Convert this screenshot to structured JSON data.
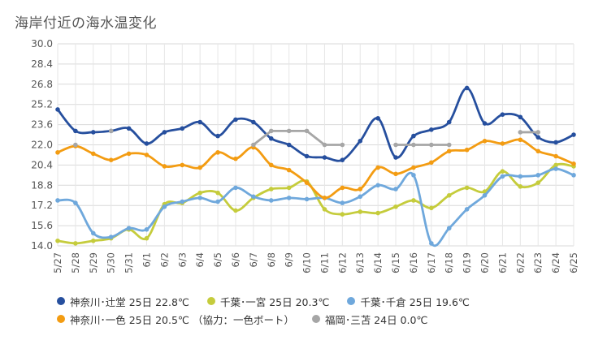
{
  "chart_data": {
    "type": "line",
    "title": "海岸付近の海水温変化",
    "xlabel": "",
    "ylabel": "",
    "ylim": [
      14.0,
      30.0
    ],
    "yticks": [
      14.0,
      15.6,
      17.2,
      18.8,
      20.4,
      22.0,
      23.6,
      25.2,
      26.8,
      28.4,
      30.0
    ],
    "grid": true,
    "legend_position": "bottom",
    "categories": [
      "5/27",
      "5/28",
      "5/29",
      "5/30",
      "5/31",
      "6/1",
      "6/2",
      "6/3",
      "6/4",
      "6/5",
      "6/6",
      "6/7",
      "6/8",
      "6/9",
      "6/10",
      "6/11",
      "6/12",
      "6/13",
      "6/14",
      "6/15",
      "6/16",
      "6/17",
      "6/18",
      "6/19",
      "6/20",
      "6/21",
      "6/22",
      "6/23",
      "6/24",
      "6/25"
    ],
    "series": [
      {
        "name": "神奈川･辻堂 25日 22.8℃",
        "color": "#264f9e",
        "smooth": true,
        "values": [
          24.8,
          23.1,
          23.0,
          23.1,
          23.3,
          22.1,
          23.0,
          23.3,
          23.8,
          22.7,
          24.0,
          23.8,
          22.5,
          22.0,
          21.1,
          21.0,
          20.8,
          22.3,
          24.1,
          21.0,
          22.7,
          23.2,
          23.8,
          26.5,
          23.7,
          24.4,
          24.2,
          22.6,
          22.2,
          22.8
        ]
      },
      {
        "name": "千葉･一宮 25日 20.3℃",
        "color": "#c5cc3c",
        "smooth": true,
        "values": [
          14.4,
          14.2,
          14.4,
          14.6,
          15.3,
          14.6,
          17.3,
          17.4,
          18.2,
          18.2,
          16.8,
          17.8,
          18.5,
          18.6,
          19.1,
          16.9,
          16.5,
          16.7,
          16.6,
          17.1,
          17.6,
          17.0,
          18.0,
          18.6,
          18.3,
          19.9,
          18.7,
          19.0,
          20.4,
          20.3
        ]
      },
      {
        "name": "千葉･千倉 25日 19.6℃",
        "color": "#6fa8dc",
        "smooth": true,
        "values": [
          17.6,
          17.4,
          15.0,
          14.7,
          15.4,
          15.3,
          17.1,
          17.5,
          17.8,
          17.5,
          18.6,
          17.9,
          17.6,
          17.8,
          17.7,
          17.8,
          17.4,
          17.9,
          18.8,
          18.5,
          19.6,
          14.2,
          15.4,
          16.9,
          18.0,
          19.5,
          19.5,
          19.6,
          20.1,
          19.6
        ]
      },
      {
        "name": "神奈川･一色 25日 20.5℃ （協力：一色ボート）",
        "color": "#f39c12",
        "smooth": true,
        "values": [
          21.4,
          21.9,
          21.3,
          20.8,
          21.3,
          21.2,
          20.3,
          20.4,
          20.2,
          21.4,
          20.9,
          21.8,
          20.4,
          20.0,
          19.0,
          17.8,
          18.6,
          18.5,
          20.2,
          19.7,
          20.2,
          20.6,
          21.5,
          21.6,
          22.3,
          22.1,
          22.4,
          21.5,
          21.1,
          20.5
        ]
      },
      {
        "name": "福岡･三苫 24日 0.0℃",
        "color": "#a6a6a6",
        "smooth": false,
        "values": [
          null,
          22.0,
          null,
          23.1,
          null,
          null,
          null,
          null,
          null,
          null,
          null,
          22.0,
          23.1,
          23.1,
          23.1,
          22.0,
          22.0,
          null,
          null,
          22.0,
          22.0,
          22.0,
          22.0,
          null,
          null,
          null,
          23.0,
          23.0,
          null,
          null
        ]
      }
    ]
  }
}
